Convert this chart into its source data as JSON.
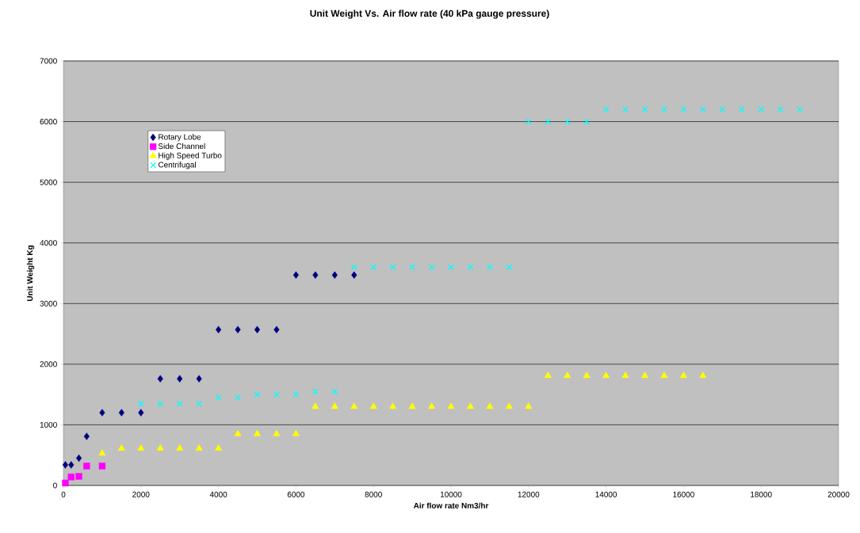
{
  "chart_data": {
    "type": "scatter",
    "title": "Unit Weight Vs. Air flow rate (40 kPa gauge pressure)",
    "xlabel": "Air flow rate Nm3/hr",
    "ylabel": "Unit Weight Kg",
    "xlim": [
      0,
      20000
    ],
    "xticks": [
      0,
      2000,
      4000,
      6000,
      8000,
      10000,
      12000,
      14000,
      16000,
      18000,
      20000
    ],
    "ylim": [
      0,
      7000
    ],
    "yticks": [
      0,
      1000,
      2000,
      3000,
      4000,
      5000,
      6000,
      7000
    ],
    "grid": "y",
    "legend": "top left",
    "series": [
      {
        "name": "Rotary Lobe",
        "color": "#000080",
        "marker": "diamond",
        "x": [
          50,
          200,
          400,
          600,
          1000,
          1500,
          2000,
          2500,
          3000,
          3500,
          4000,
          4500,
          5000,
          5500,
          6000,
          6500,
          7000,
          7500
        ],
        "values": [
          340,
          340,
          450,
          810,
          1200,
          1200,
          1200,
          1760,
          1760,
          1760,
          2570,
          2570,
          2570,
          2570,
          3470,
          3470,
          3470,
          3470
        ]
      },
      {
        "name": "Side Channel",
        "color": "#ff00ff",
        "marker": "square",
        "x": [
          50,
          200,
          400,
          600,
          1000
        ],
        "values": [
          40,
          140,
          150,
          320,
          320
        ]
      },
      {
        "name": "High Speed Turbo",
        "color": "#ffff00",
        "marker": "triangle",
        "x": [
          1000,
          1500,
          2000,
          2500,
          3000,
          3500,
          4000,
          4500,
          5000,
          5500,
          6000,
          6500,
          7000,
          7500,
          8000,
          8500,
          9000,
          9500,
          10000,
          10500,
          11000,
          11500,
          12000,
          12500,
          13000,
          13500,
          14000,
          14500,
          15000,
          15500,
          16000,
          16500
        ],
        "values": [
          530,
          610,
          610,
          610,
          610,
          610,
          610,
          850,
          850,
          850,
          850,
          1300,
          1300,
          1300,
          1300,
          1300,
          1300,
          1300,
          1300,
          1300,
          1300,
          1300,
          1300,
          1810,
          1810,
          1810,
          1810,
          1810,
          1810,
          1810,
          1810,
          1810
        ]
      },
      {
        "name": "Centrifugal",
        "color": "#00ffff",
        "marker": "cross",
        "x": [
          2000,
          2500,
          3000,
          3500,
          4000,
          4500,
          5000,
          5500,
          6000,
          6500,
          7000,
          7500,
          8000,
          8500,
          9000,
          9500,
          10000,
          10500,
          11000,
          11500,
          12000,
          12500,
          13000,
          13500,
          14000,
          14500,
          15000,
          15500,
          16000,
          16500,
          17000,
          17500,
          18000,
          18500,
          19000
        ],
        "values": [
          1350,
          1350,
          1350,
          1350,
          1450,
          1450,
          1500,
          1500,
          1500,
          1550,
          1550,
          3600,
          3600,
          3600,
          3600,
          3600,
          3600,
          3600,
          3600,
          3600,
          6000,
          6000,
          6000,
          6000,
          6200,
          6200,
          6200,
          6200,
          6200,
          6200,
          6200,
          6200,
          6200,
          6200,
          6200
        ]
      }
    ]
  }
}
